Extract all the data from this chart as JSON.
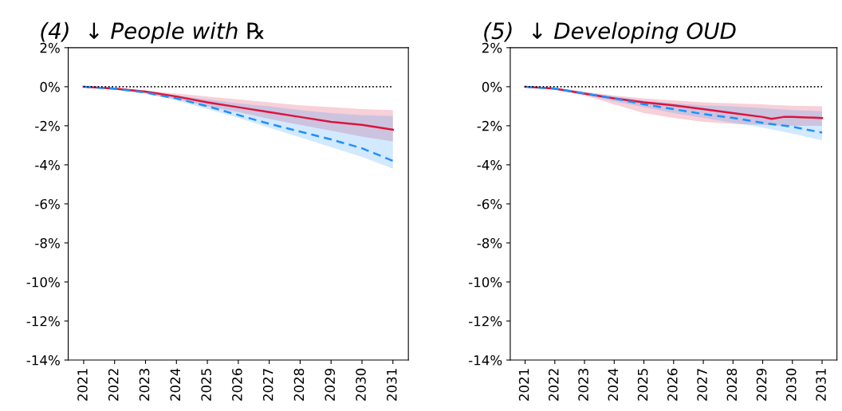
{
  "chart_data": [
    {
      "type": "line",
      "title": "(4)  ↓ People with ℞",
      "x": [
        2021,
        2022,
        2023,
        2024,
        2025,
        2026,
        2027,
        2028,
        2029,
        2030,
        2031
      ],
      "xlim": [
        2020.5,
        2031.5
      ],
      "xticks": [
        2021,
        2022,
        2023,
        2024,
        2025,
        2026,
        2027,
        2028,
        2029,
        2030,
        2031
      ],
      "ylim": [
        -14,
        2
      ],
      "yticks": [
        {
          "value": 2,
          "label": "2%"
        },
        {
          "value": 0,
          "label": "0%"
        },
        {
          "value": -2,
          "label": "-2%"
        },
        {
          "value": -4,
          "label": "-4%"
        },
        {
          "value": -6,
          "label": "-6%"
        },
        {
          "value": -8,
          "label": "-8%"
        },
        {
          "value": -10,
          "label": "-10%"
        },
        {
          "value": -12,
          "label": "-12%"
        },
        {
          "value": -14,
          "label": "-14%"
        }
      ],
      "grid": false,
      "ref_lines": [
        {
          "axis": "y",
          "value": 0,
          "color": "#000000",
          "line_style": "dotted"
        }
      ],
      "series": [
        {
          "color": "#dc143c",
          "line_style": "solid",
          "values": [
            0,
            -0.1,
            -0.25,
            -0.5,
            -0.8,
            -1.05,
            -1.3,
            -1.55,
            -1.8,
            -1.95,
            -2.2
          ],
          "lower": [
            0,
            -0.15,
            -0.35,
            -0.65,
            -1.0,
            -1.3,
            -1.65,
            -1.95,
            -2.25,
            -2.55,
            -2.8
          ],
          "upper": [
            0,
            -0.05,
            -0.2,
            -0.35,
            -0.5,
            -0.65,
            -0.8,
            -0.95,
            -1.05,
            -1.15,
            -1.2
          ]
        },
        {
          "color": "#1e90ff",
          "line_style": "dashed",
          "values": [
            0,
            -0.1,
            -0.3,
            -0.6,
            -1.0,
            -1.45,
            -1.9,
            -2.3,
            -2.7,
            -3.15,
            -3.8
          ],
          "lower": [
            0,
            -0.15,
            -0.35,
            -0.7,
            -1.15,
            -1.6,
            -2.1,
            -2.6,
            -3.1,
            -3.6,
            -4.2
          ],
          "upper": [
            0,
            -0.05,
            -0.25,
            -0.45,
            -0.65,
            -0.85,
            -1.0,
            -1.2,
            -1.35,
            -1.45,
            -1.5
          ]
        }
      ]
    },
    {
      "type": "line",
      "title": "(5)  ↓ Developing OUD",
      "x": [
        2021,
        2022,
        2023,
        2024,
        2025,
        2026,
        2027,
        2028,
        2029,
        2030,
        2031
      ],
      "xlim": [
        2020.5,
        2031.5
      ],
      "xticks": [
        2021,
        2022,
        2023,
        2024,
        2025,
        2026,
        2027,
        2028,
        2029,
        2030,
        2031
      ],
      "ylim": [
        -14,
        2
      ],
      "yticks": [
        {
          "value": 2,
          "label": "2%"
        },
        {
          "value": 0,
          "label": "0%"
        },
        {
          "value": -2,
          "label": "-2%"
        },
        {
          "value": -4,
          "label": "-4%"
        },
        {
          "value": -6,
          "label": "-6%"
        },
        {
          "value": -8,
          "label": "-8%"
        },
        {
          "value": -10,
          "label": "-10%"
        },
        {
          "value": -12,
          "label": "-12%"
        },
        {
          "value": -14,
          "label": "-14%"
        }
      ],
      "grid": false,
      "ref_lines": [
        {
          "axis": "y",
          "value": 0,
          "color": "#000000",
          "line_style": "dotted"
        }
      ],
      "series": [
        {
          "color": "#dc143c",
          "line_style": "solid",
          "x": [
            2021,
            2022,
            2023,
            2024,
            2025,
            2026,
            2027,
            2028,
            2029,
            2029.3,
            2029.7,
            2030,
            2031
          ],
          "values": [
            0,
            -0.1,
            -0.35,
            -0.6,
            -0.8,
            -0.95,
            -1.15,
            -1.35,
            -1.55,
            -1.65,
            -1.55,
            -1.55,
            -1.6
          ],
          "lower": [
            0,
            -0.15,
            -0.45,
            -0.9,
            -1.35,
            -1.6,
            -1.8,
            -1.9,
            -1.95,
            -1.97,
            -2.0,
            -2.0,
            -2.0
          ],
          "upper": [
            0,
            -0.05,
            -0.25,
            -0.45,
            -0.6,
            -0.7,
            -0.8,
            -0.85,
            -0.9,
            -0.93,
            -0.95,
            -0.97,
            -1.0
          ]
        },
        {
          "color": "#1e90ff",
          "line_style": "dashed",
          "values": [
            0,
            -0.1,
            -0.35,
            -0.6,
            -0.9,
            -1.15,
            -1.4,
            -1.6,
            -1.85,
            -2.05,
            -2.35
          ],
          "lower": [
            0,
            -0.15,
            -0.4,
            -0.75,
            -1.05,
            -1.35,
            -1.6,
            -1.85,
            -2.1,
            -2.4,
            -2.75
          ],
          "upper": [
            0,
            -0.05,
            -0.3,
            -0.5,
            -0.7,
            -0.85,
            -0.95,
            -1.0,
            -1.1,
            -1.2,
            -1.25
          ]
        }
      ]
    }
  ]
}
